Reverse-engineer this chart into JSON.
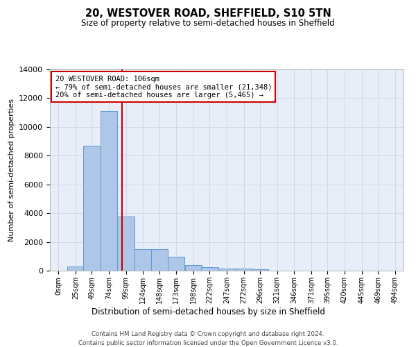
{
  "title": "20, WESTOVER ROAD, SHEFFIELD, S10 5TN",
  "subtitle": "Size of property relative to semi-detached houses in Sheffield",
  "xlabel": "Distribution of semi-detached houses by size in Sheffield",
  "ylabel": "Number of semi-detached properties",
  "property_label": "20 WESTOVER ROAD: 106sqm",
  "pct_smaller": 79,
  "n_smaller": 21348,
  "pct_larger": 20,
  "n_larger": 5465,
  "bin_edges": [
    0,
    25,
    49,
    74,
    99,
    124,
    148,
    173,
    198,
    222,
    247,
    272,
    296,
    321,
    346,
    371,
    395,
    420,
    445,
    469,
    494
  ],
  "bin_labels": [
    "0sqm",
    "25sqm",
    "49sqm",
    "74sqm",
    "99sqm",
    "124sqm",
    "148sqm",
    "173sqm",
    "198sqm",
    "222sqm",
    "247sqm",
    "272sqm",
    "296sqm",
    "321sqm",
    "346sqm",
    "371sqm",
    "395sqm",
    "420sqm",
    "445sqm",
    "469sqm",
    "494sqm"
  ],
  "bar_heights": [
    0,
    300,
    8700,
    11100,
    3750,
    1520,
    1520,
    950,
    380,
    230,
    150,
    150,
    100,
    0,
    0,
    0,
    0,
    0,
    0,
    0
  ],
  "bar_color": "#aec6e8",
  "bar_edge_color": "#5b9bd5",
  "vline_color": "#cc0000",
  "annotation_box_color": "#cc0000",
  "grid_color": "#d0d8e8",
  "bg_color": "#e8eef8",
  "footer_line1": "Contains HM Land Registry data © Crown copyright and database right 2024.",
  "footer_line2": "Contains public sector information licensed under the Open Government Licence v3.0.",
  "ylim": [
    0,
    14000
  ],
  "yticks": [
    0,
    2000,
    4000,
    6000,
    8000,
    10000,
    12000,
    14000
  ]
}
